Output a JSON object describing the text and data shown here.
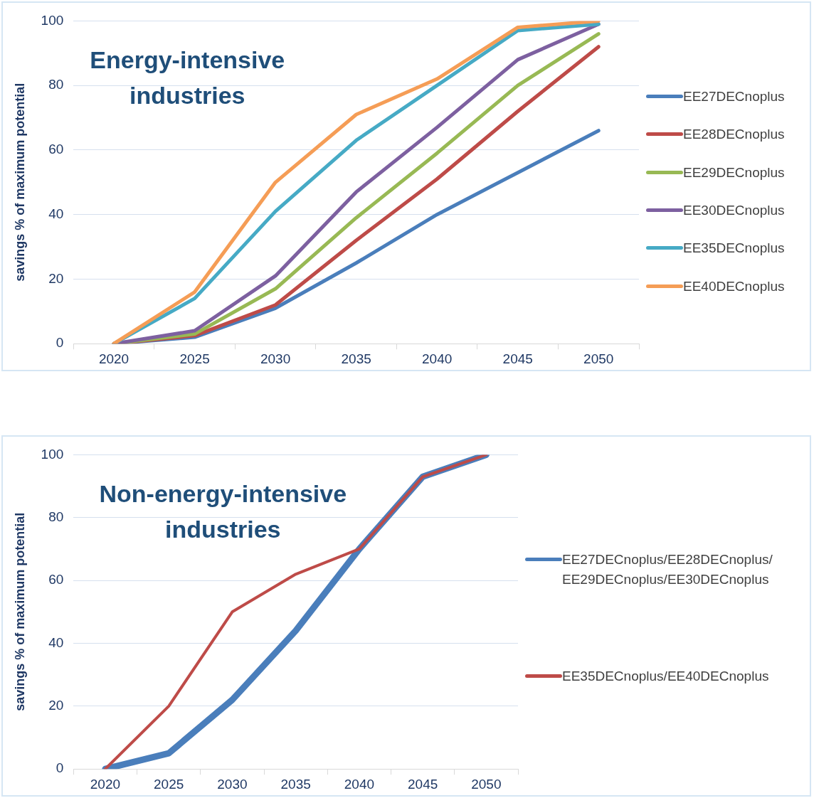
{
  "chart_data": [
    {
      "type": "line",
      "title": "Energy-intensive industries",
      "ylabel": "savings % of maximum potential",
      "categories": [
        "2020",
        "2025",
        "2030",
        "2035",
        "2040",
        "2045",
        "2050"
      ],
      "series": [
        {
          "name": "EE27DECnoplus",
          "color": "#4a7ebb",
          "values": [
            0,
            2,
            11,
            25,
            40,
            53,
            66
          ]
        },
        {
          "name": "EE28DECnoplus",
          "color": "#be4b48",
          "values": [
            0,
            2.5,
            12,
            32,
            51,
            72,
            92
          ]
        },
        {
          "name": "EE29DECnoplus",
          "color": "#98b954",
          "values": [
            0,
            3,
            17,
            39,
            59,
            80,
            96
          ]
        },
        {
          "name": "EE30DECnoplus",
          "color": "#7d60a0",
          "values": [
            0,
            4,
            21,
            47,
            67,
            88,
            99
          ]
        },
        {
          "name": "EE35DECnoplus",
          "color": "#46aac5",
          "values": [
            0,
            14,
            41,
            63,
            80,
            97,
            99
          ]
        },
        {
          "name": "EE40DECnoplus",
          "color": "#f59d56",
          "values": [
            0,
            16,
            50,
            71,
            82,
            98,
            100
          ]
        }
      ],
      "ylim": [
        0,
        100
      ],
      "yticks": [
        0,
        20,
        40,
        60,
        80,
        100
      ],
      "grid": "y",
      "legend": "right",
      "marker": "none",
      "line_style": "solid"
    },
    {
      "type": "line",
      "title": "Non-energy-intensive industries",
      "ylabel": "savings % of maximum potential",
      "categories": [
        "2020",
        "2025",
        "2030",
        "2035",
        "2040",
        "2045",
        "2050"
      ],
      "series": [
        {
          "name": "EE27DECnoplus/EE28DECnoplus/EE29DECnoplus/EE30DECnoplus",
          "color": "#4a7ebb",
          "values": [
            0,
            5,
            22,
            44,
            70,
            93,
            100
          ]
        },
        {
          "name": "EE35DECnoplus/EE40DECnoplus",
          "color": "#be4b48",
          "values": [
            0,
            20,
            50,
            62,
            70,
            93,
            100
          ]
        }
      ],
      "ylim": [
        0,
        100
      ],
      "yticks": [
        0,
        20,
        40,
        60,
        80,
        100
      ],
      "grid": "y",
      "legend": "right",
      "marker": "none",
      "line_style": "solid"
    }
  ]
}
